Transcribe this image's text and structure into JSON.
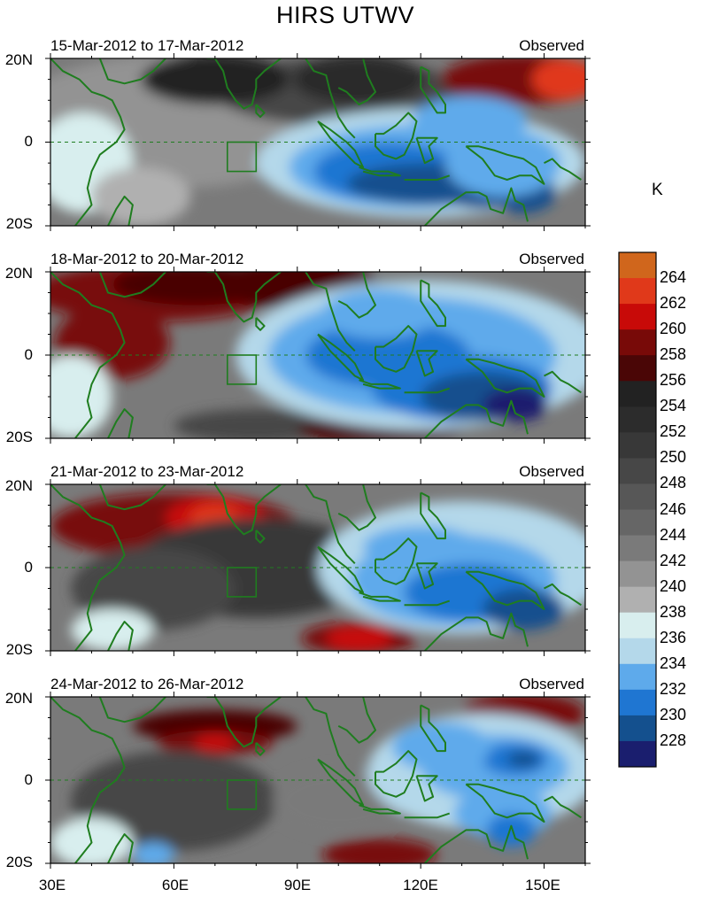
{
  "title": "HIRS UTWV",
  "unit": "K",
  "panels": [
    {
      "date_range": "15-Mar-2012 to 17-Mar-2012",
      "tag": "Observed"
    },
    {
      "date_range": "18-Mar-2012 to 20-Mar-2012",
      "tag": "Observed"
    },
    {
      "date_range": "21-Mar-2012 to 23-Mar-2012",
      "tag": "Observed"
    },
    {
      "date_range": "24-Mar-2012 to 26-Mar-2012",
      "tag": "Observed"
    }
  ],
  "lat_labels": [
    "20N",
    "0",
    "20S"
  ],
  "lon_labels": [
    "30E",
    "60E",
    "90E",
    "120E",
    "150E"
  ],
  "colorbar": {
    "labels": [
      "264",
      "262",
      "260",
      "258",
      "256",
      "254",
      "252",
      "250",
      "248",
      "246",
      "244",
      "242",
      "240",
      "238",
      "236",
      "234",
      "232",
      "230",
      "228"
    ],
    "colors": [
      "#d0661c",
      "#e0391a",
      "#c80a08",
      "#780a08",
      "#4a0606",
      "#222222",
      "#2c2c2c",
      "#383838",
      "#474747",
      "#575757",
      "#666666",
      "#7a7a7a",
      "#939393",
      "#b0b0b0",
      "#d8eeee",
      "#b4d8ea",
      "#5eaaeb",
      "#1f76d2",
      "#14508e",
      "#1a1e6e"
    ]
  },
  "colors": {
    "coastline": "#1f7d1f",
    "box_outline": "#1f7d1f"
  },
  "region": {
    "lon_range": [
      30,
      160
    ],
    "lat_range": [
      -20,
      20
    ]
  }
}
